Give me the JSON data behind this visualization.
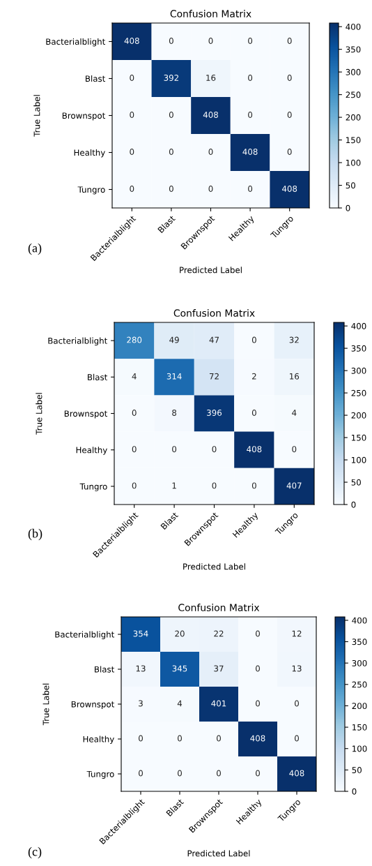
{
  "chart_data": [
    {
      "type": "heatmap",
      "title": "Confusion Matrix",
      "xlabel": "Predicted Label",
      "ylabel": "True Label",
      "clim": [
        0,
        408
      ],
      "cticks": [
        0,
        50,
        100,
        150,
        200,
        250,
        300,
        350,
        400
      ],
      "annotations": [
        "(a)"
      ],
      "data_labels": true,
      "categories": [
        "Bacterialblight",
        "Blast",
        "Brownspot",
        "Healthy",
        "Tungro"
      ],
      "y_categories": [
        "Bacterialblight",
        "Blast",
        "Brownspot",
        "Healthy",
        "Tungro"
      ],
      "cells": [
        [
          408,
          0,
          0,
          0,
          0
        ],
        [
          0,
          392,
          16,
          0,
          0
        ],
        [
          0,
          0,
          408,
          0,
          0
        ],
        [
          0,
          0,
          0,
          408,
          0
        ],
        [
          0,
          0,
          0,
          0,
          408
        ]
      ]
    },
    {
      "type": "heatmap",
      "title": "Confusion Matrix",
      "xlabel": "Predicted Label",
      "ylabel": "True Label",
      "clim": [
        0,
        408
      ],
      "cticks": [
        0,
        50,
        100,
        150,
        200,
        250,
        300,
        350,
        400
      ],
      "annotations": [
        "(b)"
      ],
      "data_labels": true,
      "categories": [
        "Bacterialblight",
        "Blast",
        "Brownspot",
        "Healthy",
        "Tungro"
      ],
      "y_categories": [
        "Bacterialblight",
        "Blast",
        "Brownspot",
        "Healthy",
        "Tungro"
      ],
      "cells": [
        [
          280,
          49,
          47,
          0,
          32
        ],
        [
          4,
          314,
          72,
          2,
          16
        ],
        [
          0,
          8,
          396,
          0,
          4
        ],
        [
          0,
          0,
          0,
          408,
          0
        ],
        [
          0,
          1,
          0,
          0,
          407
        ]
      ]
    },
    {
      "type": "heatmap",
      "title": "Confusion Matrix",
      "xlabel": "Predicted Label",
      "ylabel": "True Label",
      "clim": [
        0,
        408
      ],
      "cticks": [
        0,
        50,
        100,
        150,
        200,
        250,
        300,
        350,
        400
      ],
      "annotations": [
        "(c)"
      ],
      "data_labels": true,
      "categories": [
        "Bacterialblight",
        "Blast",
        "Brownspot",
        "Healthy",
        "Tungro"
      ],
      "y_categories": [
        "Bacterialblight",
        "Blast",
        "Brownspot",
        "Healthy",
        "Tungro"
      ],
      "cells": [
        [
          354,
          20,
          22,
          0,
          12
        ],
        [
          13,
          345,
          37,
          0,
          13
        ],
        [
          3,
          4,
          401,
          0,
          0
        ],
        [
          0,
          0,
          0,
          408,
          0
        ],
        [
          0,
          0,
          0,
          0,
          408
        ]
      ]
    }
  ]
}
